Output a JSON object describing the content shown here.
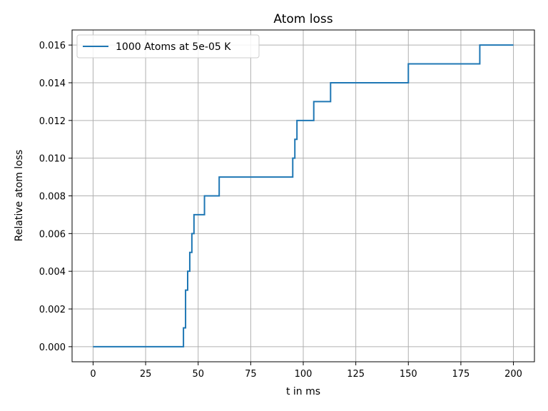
{
  "chart_data": {
    "type": "line",
    "title": "Atom loss",
    "xlabel": "t in ms",
    "ylabel": "Relative atom loss",
    "xlim": [
      -10,
      210
    ],
    "ylim": [
      -0.0008,
      0.0168
    ],
    "xticks": [
      0,
      25,
      50,
      75,
      100,
      125,
      150,
      175,
      200
    ],
    "yticks": [
      0.0,
      0.002,
      0.004,
      0.006,
      0.008,
      0.01,
      0.012,
      0.014,
      0.016
    ],
    "xtick_labels": [
      "0",
      "25",
      "50",
      "75",
      "100",
      "125",
      "150",
      "175",
      "200"
    ],
    "ytick_labels": [
      "0.000",
      "0.002",
      "0.004",
      "0.006",
      "0.008",
      "0.010",
      "0.012",
      "0.014",
      "0.016"
    ],
    "grid": true,
    "legend_position": "top-left",
    "colors": {
      "series": "#1f77b4",
      "grid": "#b0b0b0",
      "axis": "#000000"
    },
    "series": [
      {
        "name": "1000 Atoms at 5e-05 K",
        "step": "post",
        "x": [
          0,
          43,
          44,
          45,
          46,
          47,
          48,
          53,
          60,
          95,
          96,
          97,
          105,
          113,
          150,
          184,
          200
        ],
        "y": [
          0.0,
          0.001,
          0.003,
          0.004,
          0.005,
          0.006,
          0.007,
          0.008,
          0.009,
          0.01,
          0.011,
          0.012,
          0.013,
          0.014,
          0.015,
          0.016,
          0.016
        ]
      }
    ]
  }
}
